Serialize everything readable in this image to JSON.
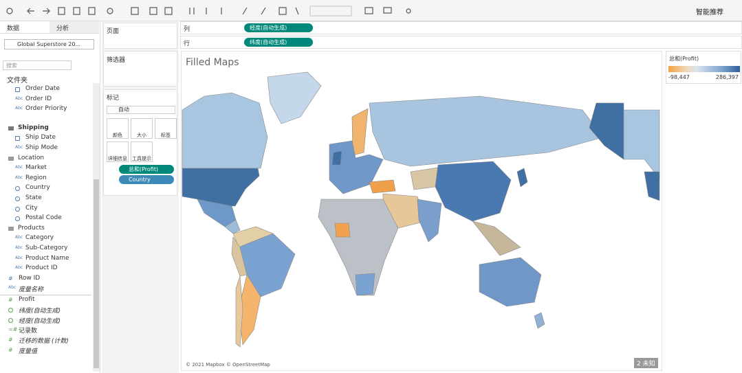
{
  "toolbar": {
    "smart_recommend": "智能推荐"
  },
  "data_pane": {
    "tabs": [
      "数据",
      "分析"
    ],
    "datasource": "Global Superstore 20...",
    "search_placeholder": "搜索",
    "folder_label": "文件夹",
    "top_fields": [
      {
        "name": "Order Date",
        "icon": "date"
      },
      {
        "name": "Order ID",
        "icon": "Abc"
      },
      {
        "name": "Order Priority",
        "icon": "Abc"
      }
    ],
    "groups": [
      {
        "name": "Shipping",
        "kind": "folder",
        "fields": [
          {
            "name": "Ship Date",
            "icon": "date"
          },
          {
            "name": "Ship Mode",
            "icon": "Abc"
          }
        ]
      },
      {
        "name": "Location",
        "kind": "hierarchy",
        "fields": [
          {
            "name": "Market",
            "icon": "Abc"
          },
          {
            "name": "Region",
            "icon": "Abc"
          },
          {
            "name": "Country",
            "icon": "geo"
          },
          {
            "name": "State",
            "icon": "geo"
          },
          {
            "name": "City",
            "icon": "geo"
          },
          {
            "name": "Postal Code",
            "icon": "geo"
          }
        ]
      },
      {
        "name": "Products",
        "kind": "hierarchy",
        "fields": [
          {
            "name": "Category",
            "icon": "Abc"
          },
          {
            "name": "Sub-Category",
            "icon": "Abc"
          },
          {
            "name": "Product Name",
            "icon": "Abc"
          },
          {
            "name": "Product ID",
            "icon": "Abc"
          }
        ]
      }
    ],
    "other_dimensions": [
      {
        "name": "Row ID",
        "icon": "#"
      },
      {
        "name": "度量名称",
        "icon": "Abc",
        "italic": true
      }
    ],
    "measures": [
      {
        "name": "Profit",
        "icon": "#"
      },
      {
        "name": "纬度(自动生成)",
        "icon": "geo",
        "italic": true
      },
      {
        "name": "经度(自动生成)",
        "icon": "geo",
        "italic": true
      },
      {
        "name": "记录数",
        "icon": "=#"
      },
      {
        "name": "迁移的数据 (计数)",
        "icon": "#",
        "italic": true
      },
      {
        "name": "度量值",
        "icon": "#",
        "italic": true
      }
    ]
  },
  "cards": {
    "pages": "页面",
    "filters": "筛选器",
    "marks": "标记",
    "mark_type": "自动",
    "mark_buttons": [
      "颜色",
      "大小",
      "标签",
      "详细信息",
      "工具提示"
    ],
    "mark_pills": [
      "总和(Profit)",
      "Country"
    ]
  },
  "shelves": {
    "columns": {
      "label": "列",
      "pill": "经度(自动生成)"
    },
    "rows": {
      "label": "行",
      "pill": "纬度(自动生成)"
    }
  },
  "view": {
    "title": "Filled Maps",
    "attribution": "© 2021 Mapbox © OpenStreetMap",
    "badge": "2 未知"
  },
  "legend": {
    "title": "总和(Profit)",
    "min_label": "-98,447",
    "max_label": "286,397"
  }
}
